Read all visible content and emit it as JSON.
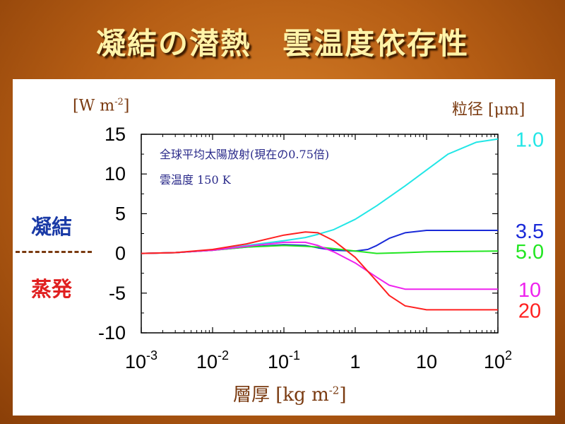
{
  "title": "凝結の潜熱　雲温度依存性",
  "left_unit_prefix": "[W m",
  "left_unit_exp": "-2",
  "left_unit_suffix": "]",
  "right_unit": "粒径 [μm]",
  "side_labels": {
    "condensation": "凝結",
    "evaporation": "蒸発"
  },
  "annotations": [
    "全球平均太陽放射(現在の0.75倍)",
    "雲温度  150 K"
  ],
  "xlabel_prefix": "層厚  [kg m",
  "xlabel_exp": "-2",
  "xlabel_suffix": "]",
  "colors": {
    "background": "#b55d14",
    "title": "#fff3a8",
    "unit_text": "#7a3a10",
    "condensation": "#1a3aa6",
    "evaporation": "#e02020"
  },
  "chart_data": {
    "type": "line",
    "xscale": "log",
    "xlim": [
      0.001,
      100
    ],
    "ylim": [
      -10,
      15
    ],
    "yticks": [
      15,
      10,
      5,
      0,
      -5,
      -10
    ],
    "xticks": [
      {
        "value": 0.001,
        "base": "10",
        "exp": "-3"
      },
      {
        "value": 0.01,
        "base": "10",
        "exp": "-2"
      },
      {
        "value": 0.1,
        "base": "10",
        "exp": "-1"
      },
      {
        "value": 1,
        "base": "1",
        "exp": ""
      },
      {
        "value": 10,
        "base": "10",
        "exp": ""
      },
      {
        "value": 100,
        "base": "10",
        "exp": "2"
      }
    ],
    "series": [
      {
        "name": "1.0",
        "color": "#22e6e6",
        "x": [
          0.001,
          0.003,
          0.01,
          0.03,
          0.1,
          0.2,
          0.3,
          0.5,
          1,
          2,
          5,
          10,
          20,
          50,
          100
        ],
        "y": [
          0,
          0.1,
          0.4,
          1.0,
          1.6,
          2.0,
          2.4,
          3.0,
          4.3,
          6.0,
          8.5,
          10.5,
          12.5,
          14.0,
          14.4
        ]
      },
      {
        "name": "3.5",
        "color": "#1a2ad8",
        "x": [
          0.001,
          0.003,
          0.01,
          0.03,
          0.1,
          0.2,
          0.3,
          0.5,
          1,
          1.5,
          2,
          3,
          5,
          10,
          20,
          50,
          100
        ],
        "y": [
          0,
          0.1,
          0.4,
          0.8,
          1.1,
          1.0,
          0.7,
          0.4,
          0.3,
          0.5,
          1.0,
          1.9,
          2.6,
          2.9,
          2.9,
          2.9,
          2.9
        ]
      },
      {
        "name": "5.0",
        "color": "#22e622",
        "x": [
          0.001,
          0.003,
          0.01,
          0.03,
          0.1,
          0.2,
          0.3,
          0.5,
          1,
          2,
          5,
          10,
          100
        ],
        "y": [
          0,
          0.1,
          0.4,
          0.8,
          1.0,
          0.9,
          0.8,
          0.6,
          0.3,
          0.0,
          0.1,
          0.2,
          0.3
        ]
      },
      {
        "name": "10",
        "color": "#ee22ee",
        "x": [
          0.001,
          0.003,
          0.01,
          0.03,
          0.1,
          0.2,
          0.3,
          0.5,
          1,
          2,
          3,
          5,
          10,
          20,
          100
        ],
        "y": [
          0,
          0.1,
          0.4,
          0.9,
          1.4,
          1.4,
          1.0,
          0.2,
          -1.2,
          -3.0,
          -4.0,
          -4.5,
          -4.5,
          -4.5,
          -4.5
        ]
      },
      {
        "name": "20",
        "color": "#ff2020",
        "x": [
          0.001,
          0.003,
          0.01,
          0.03,
          0.1,
          0.2,
          0.3,
          0.5,
          1,
          2,
          3,
          5,
          10,
          20,
          100
        ],
        "y": [
          0,
          0.1,
          0.5,
          1.2,
          2.3,
          2.7,
          2.6,
          1.6,
          -0.5,
          -3.5,
          -5.3,
          -6.6,
          -7.1,
          -7.1,
          -7.1
        ]
      }
    ]
  }
}
